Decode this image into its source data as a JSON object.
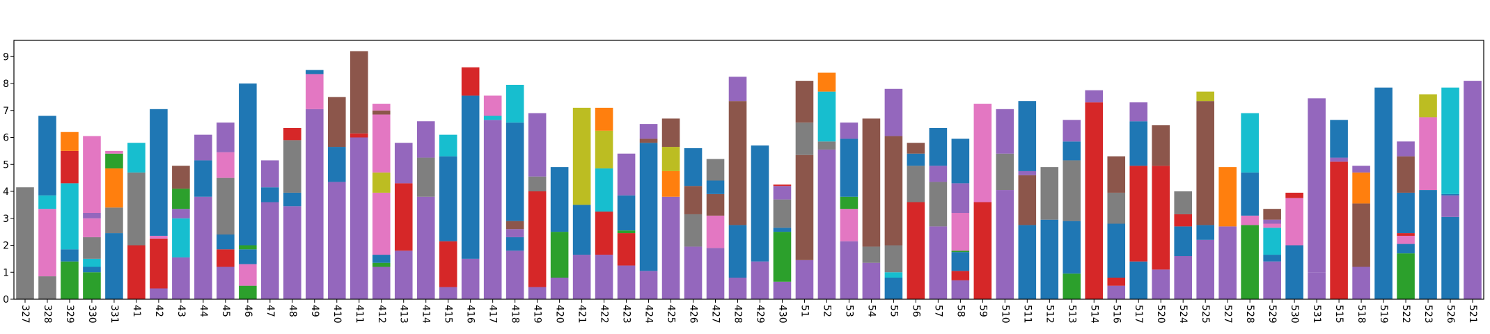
{
  "chart_data": {
    "type": "bar",
    "stacked": true,
    "title": "",
    "xlabel": "",
    "ylabel": "",
    "ylim": [
      0,
      9.6
    ],
    "ytick_values": [
      0,
      1,
      2,
      3,
      4,
      5,
      6,
      7,
      8,
      9
    ],
    "ytick_labels_visible": false,
    "xtick_rotation": -90,
    "grid": false,
    "legend": "none",
    "categories": [
      "327",
      "328",
      "329",
      "330",
      "331",
      "41",
      "42",
      "43",
      "44",
      "45",
      "46",
      "47",
      "48",
      "49",
      "410",
      "411",
      "412",
      "413",
      "414",
      "415",
      "416",
      "417",
      "418",
      "419",
      "420",
      "421",
      "422",
      "423",
      "424",
      "425",
      "426",
      "427",
      "428",
      "429",
      "430",
      "51",
      "52",
      "53",
      "54",
      "55",
      "56",
      "57",
      "58",
      "59",
      "510",
      "511",
      "512",
      "513",
      "514",
      "516",
      "517",
      "520",
      "524",
      "525",
      "527",
      "528",
      "529",
      "530",
      "531",
      "515",
      "518",
      "519",
      "522",
      "523",
      "526",
      "521"
    ],
    "colors": {
      "blue": "#1f77b4",
      "orange": "#ff7f0e",
      "green": "#2ca02c",
      "red": "#d62728",
      "purple": "#9467bd",
      "brown": "#8c564b",
      "pink": "#e377c2",
      "gray": "#7f7f7f",
      "olive": "#bcbd22",
      "cyan": "#17becf"
    },
    "stacks": [
      [
        [
          "gray",
          4.15
        ]
      ],
      [
        [
          "gray",
          0.85
        ],
        [
          "pink",
          2.5
        ],
        [
          "cyan",
          0.5
        ],
        [
          "blue",
          2.95
        ]
      ],
      [
        [
          "green",
          1.4
        ],
        [
          "blue",
          0.45
        ],
        [
          "cyan",
          2.45
        ],
        [
          "red",
          1.2
        ],
        [
          "orange",
          0.7
        ]
      ],
      [
        [
          "green",
          1.0
        ],
        [
          "blue",
          0.2
        ],
        [
          "cyan",
          0.3
        ],
        [
          "gray",
          0.8
        ],
        [
          "pink",
          0.7
        ],
        [
          "purple",
          0.2
        ],
        [
          "pink",
          2.85
        ]
      ],
      [
        [
          "blue",
          2.45
        ],
        [
          "gray",
          0.95
        ],
        [
          "orange",
          1.45
        ],
        [
          "green",
          0.55
        ],
        [
          "pink",
          0.1
        ]
      ],
      [
        [
          "red",
          2.0
        ],
        [
          "gray",
          2.7
        ],
        [
          "cyan",
          1.1
        ]
      ],
      [
        [
          "purple",
          0.4
        ],
        [
          "red",
          1.85
        ],
        [
          "pink",
          0.1
        ],
        [
          "blue",
          4.7
        ]
      ],
      [
        [
          "purple",
          1.55
        ],
        [
          "cyan",
          1.45
        ],
        [
          "purple",
          0.35
        ],
        [
          "green",
          0.75
        ],
        [
          "brown",
          0.85
        ]
      ],
      [
        [
          "purple",
          3.8
        ],
        [
          "blue",
          1.35
        ],
        [
          "purple",
          0.95
        ]
      ],
      [
        [
          "purple",
          1.2
        ],
        [
          "red",
          0.65
        ],
        [
          "blue",
          0.55
        ],
        [
          "gray",
          2.1
        ],
        [
          "pink",
          0.95
        ],
        [
          "purple",
          1.1
        ]
      ],
      [
        [
          "green",
          0.5
        ],
        [
          "pink",
          0.8
        ],
        [
          "blue",
          0.55
        ],
        [
          "green",
          0.15
        ],
        [
          "blue",
          6.0
        ]
      ],
      [
        [
          "purple",
          3.6
        ],
        [
          "blue",
          0.55
        ],
        [
          "purple",
          1.0
        ]
      ],
      [
        [
          "purple",
          3.45
        ],
        [
          "blue",
          0.5
        ],
        [
          "gray",
          1.95
        ],
        [
          "red",
          0.45
        ]
      ],
      [
        [
          "purple",
          7.05
        ],
        [
          "pink",
          1.3
        ],
        [
          "blue",
          0.15
        ]
      ],
      [
        [
          "purple",
          4.35
        ],
        [
          "blue",
          1.3
        ],
        [
          "brown",
          1.85
        ]
      ],
      [
        [
          "purple",
          6.0
        ],
        [
          "red",
          0.15
        ],
        [
          "brown",
          3.05
        ]
      ],
      [
        [
          "purple",
          1.2
        ],
        [
          "green",
          0.15
        ],
        [
          "blue",
          0.3
        ],
        [
          "pink",
          2.3
        ],
        [
          "olive",
          0.75
        ],
        [
          "pink",
          2.15
        ],
        [
          "brown",
          0.15
        ],
        [
          "pink",
          0.25
        ]
      ],
      [
        [
          "purple",
          1.8
        ],
        [
          "red",
          2.5
        ],
        [
          "purple",
          1.5
        ]
      ],
      [
        [
          "purple",
          3.8
        ],
        [
          "gray",
          1.45
        ],
        [
          "purple",
          1.35
        ]
      ],
      [
        [
          "purple",
          0.45
        ],
        [
          "red",
          1.7
        ],
        [
          "blue",
          3.15
        ],
        [
          "cyan",
          0.8
        ]
      ],
      [
        [
          "purple",
          1.5
        ],
        [
          "blue",
          6.05
        ],
        [
          "red",
          1.05
        ]
      ],
      [
        [
          "purple",
          6.65
        ],
        [
          "cyan",
          0.15
        ],
        [
          "pink",
          0.75
        ]
      ],
      [
        [
          "purple",
          1.8
        ],
        [
          "blue",
          0.5
        ],
        [
          "purple",
          0.3
        ],
        [
          "brown",
          0.3
        ],
        [
          "blue",
          3.65
        ],
        [
          "cyan",
          1.4
        ]
      ],
      [
        [
          "purple",
          0.45
        ],
        [
          "red",
          3.55
        ],
        [
          "gray",
          0.55
        ],
        [
          "purple",
          2.35
        ]
      ],
      [
        [
          "purple",
          0.8
        ],
        [
          "green",
          1.7
        ],
        [
          "blue",
          2.4
        ]
      ],
      [
        [
          "purple",
          1.65
        ],
        [
          "blue",
          1.85
        ],
        [
          "olive",
          3.6
        ]
      ],
      [
        [
          "purple",
          1.65
        ],
        [
          "red",
          1.6
        ],
        [
          "cyan",
          1.6
        ],
        [
          "olive",
          1.4
        ],
        [
          "orange",
          0.85
        ]
      ],
      [
        [
          "purple",
          1.25
        ],
        [
          "red",
          1.2
        ],
        [
          "green",
          0.1
        ],
        [
          "blue",
          1.3
        ],
        [
          "purple",
          1.55
        ]
      ],
      [
        [
          "purple",
          1.05
        ],
        [
          "blue",
          4.75
        ],
        [
          "brown",
          0.15
        ],
        [
          "purple",
          0.55
        ]
      ],
      [
        [
          "purple",
          3.8
        ],
        [
          "orange",
          0.95
        ],
        [
          "olive",
          0.9
        ],
        [
          "brown",
          1.05
        ]
      ],
      [
        [
          "purple",
          1.95
        ],
        [
          "gray",
          1.2
        ],
        [
          "brown",
          1.05
        ],
        [
          "blue",
          1.4
        ]
      ],
      [
        [
          "purple",
          1.9
        ],
        [
          "pink",
          1.2
        ],
        [
          "brown",
          0.8
        ],
        [
          "blue",
          0.5
        ],
        [
          "gray",
          0.8
        ]
      ],
      [
        [
          "purple",
          0.8
        ],
        [
          "blue",
          1.95
        ],
        [
          "brown",
          4.6
        ],
        [
          "purple",
          0.9
        ]
      ],
      [
        [
          "purple",
          1.4
        ],
        [
          "blue",
          4.3
        ]
      ],
      [
        [
          "purple",
          0.65
        ],
        [
          "green",
          1.85
        ],
        [
          "blue",
          0.15
        ],
        [
          "gray",
          1.05
        ],
        [
          "purple",
          0.5
        ],
        [
          "red",
          0.05
        ]
      ],
      [
        [
          "purple",
          1.45
        ],
        [
          "brown",
          3.9
        ],
        [
          "gray",
          1.2
        ],
        [
          "brown",
          1.55
        ]
      ],
      [
        [
          "purple",
          5.55
        ],
        [
          "gray",
          0.3
        ],
        [
          "cyan",
          1.85
        ],
        [
          "orange",
          0.7
        ]
      ],
      [
        [
          "purple",
          2.15
        ],
        [
          "pink",
          1.2
        ],
        [
          "green",
          0.45
        ],
        [
          "blue",
          2.15
        ],
        [
          "purple",
          0.6
        ]
      ],
      [
        [
          "purple",
          1.35
        ],
        [
          "gray",
          0.6
        ],
        [
          "brown",
          4.75
        ]
      ],
      [
        [
          "blue",
          0.8
        ],
        [
          "cyan",
          0.2
        ],
        [
          "gray",
          1.0
        ],
        [
          "brown",
          4.05
        ],
        [
          "purple",
          1.75
        ]
      ],
      [
        [
          "red",
          3.6
        ],
        [
          "gray",
          1.35
        ],
        [
          "blue",
          0.45
        ],
        [
          "brown",
          0.4
        ]
      ],
      [
        [
          "purple",
          2.7
        ],
        [
          "gray",
          1.65
        ],
        [
          "purple",
          0.6
        ],
        [
          "blue",
          1.4
        ]
      ],
      [
        [
          "purple",
          0.7
        ],
        [
          "red",
          0.35
        ],
        [
          "blue",
          0.7
        ],
        [
          "green",
          0.05
        ],
        [
          "pink",
          1.4
        ],
        [
          "purple",
          1.1
        ],
        [
          "blue",
          1.65
        ]
      ],
      [
        [
          "red",
          3.6
        ],
        [
          "pink",
          3.65
        ]
      ],
      [
        [
          "purple",
          4.05
        ],
        [
          "gray",
          1.35
        ],
        [
          "purple",
          1.65
        ]
      ],
      [
        [
          "blue",
          2.75
        ],
        [
          "brown",
          1.85
        ],
        [
          "purple",
          0.15
        ],
        [
          "blue",
          2.6
        ]
      ],
      [
        [
          "blue",
          2.95
        ],
        [
          "gray",
          1.95
        ]
      ],
      [
        [
          "green",
          0.95
        ],
        [
          "blue",
          1.95
        ],
        [
          "gray",
          2.25
        ],
        [
          "blue",
          0.7
        ],
        [
          "purple",
          0.8
        ]
      ],
      [
        [
          "red",
          7.3
        ],
        [
          "purple",
          0.45
        ]
      ],
      [
        [
          "purple",
          0.5
        ],
        [
          "red",
          0.3
        ],
        [
          "blue",
          2.0
        ],
        [
          "gray",
          1.15
        ],
        [
          "brown",
          1.35
        ]
      ],
      [
        [
          "blue",
          1.4
        ],
        [
          "red",
          3.55
        ],
        [
          "blue",
          1.65
        ],
        [
          "purple",
          0.7
        ]
      ],
      [
        [
          "purple",
          1.1
        ],
        [
          "red",
          3.85
        ],
        [
          "brown",
          1.5
        ]
      ],
      [
        [
          "purple",
          1.6
        ],
        [
          "blue",
          1.1
        ],
        [
          "red",
          0.45
        ],
        [
          "gray",
          0.85
        ]
      ],
      [
        [
          "purple",
          2.2
        ],
        [
          "blue",
          0.55
        ],
        [
          "brown",
          4.6
        ],
        [
          "olive",
          0.35
        ]
      ],
      [
        [
          "purple",
          2.7
        ],
        [
          "orange",
          2.2
        ]
      ],
      [
        [
          "green",
          2.75
        ],
        [
          "pink",
          0.35
        ],
        [
          "blue",
          1.6
        ],
        [
          "cyan",
          2.2
        ]
      ],
      [
        [
          "purple",
          1.4
        ],
        [
          "blue",
          0.25
        ],
        [
          "cyan",
          1.0
        ],
        [
          "pink",
          0.15
        ],
        [
          "purple",
          0.15
        ],
        [
          "brown",
          0.4
        ]
      ],
      [
        [
          "blue",
          2.0
        ],
        [
          "pink",
          1.75
        ],
        [
          "red",
          0.2
        ]
      ],
      [
        [
          "purple",
          1.0
        ],
        [
          "purple",
          6.45
        ]
      ],
      [
        [
          "red",
          5.1
        ],
        [
          "purple",
          0.15
        ],
        [
          "blue",
          1.4
        ]
      ],
      [
        [
          "purple",
          1.2
        ],
        [
          "brown",
          2.35
        ],
        [
          "orange",
          1.15
        ],
        [
          "purple",
          0.25
        ]
      ],
      [
        [
          "blue",
          7.85
        ]
      ],
      [
        [
          "green",
          1.7
        ],
        [
          "blue",
          0.35
        ],
        [
          "pink",
          0.3
        ],
        [
          "red",
          0.1
        ],
        [
          "blue",
          1.5
        ],
        [
          "brown",
          1.35
        ],
        [
          "purple",
          0.55
        ]
      ],
      [
        [
          "blue",
          4.05
        ],
        [
          "pink",
          2.7
        ],
        [
          "olive",
          0.85
        ]
      ],
      [
        [
          "blue",
          3.05
        ],
        [
          "purple",
          0.8
        ],
        [
          "blue",
          0.05
        ],
        [
          "cyan",
          3.95
        ]
      ],
      [
        [
          "purple",
          8.1
        ]
      ]
    ]
  }
}
